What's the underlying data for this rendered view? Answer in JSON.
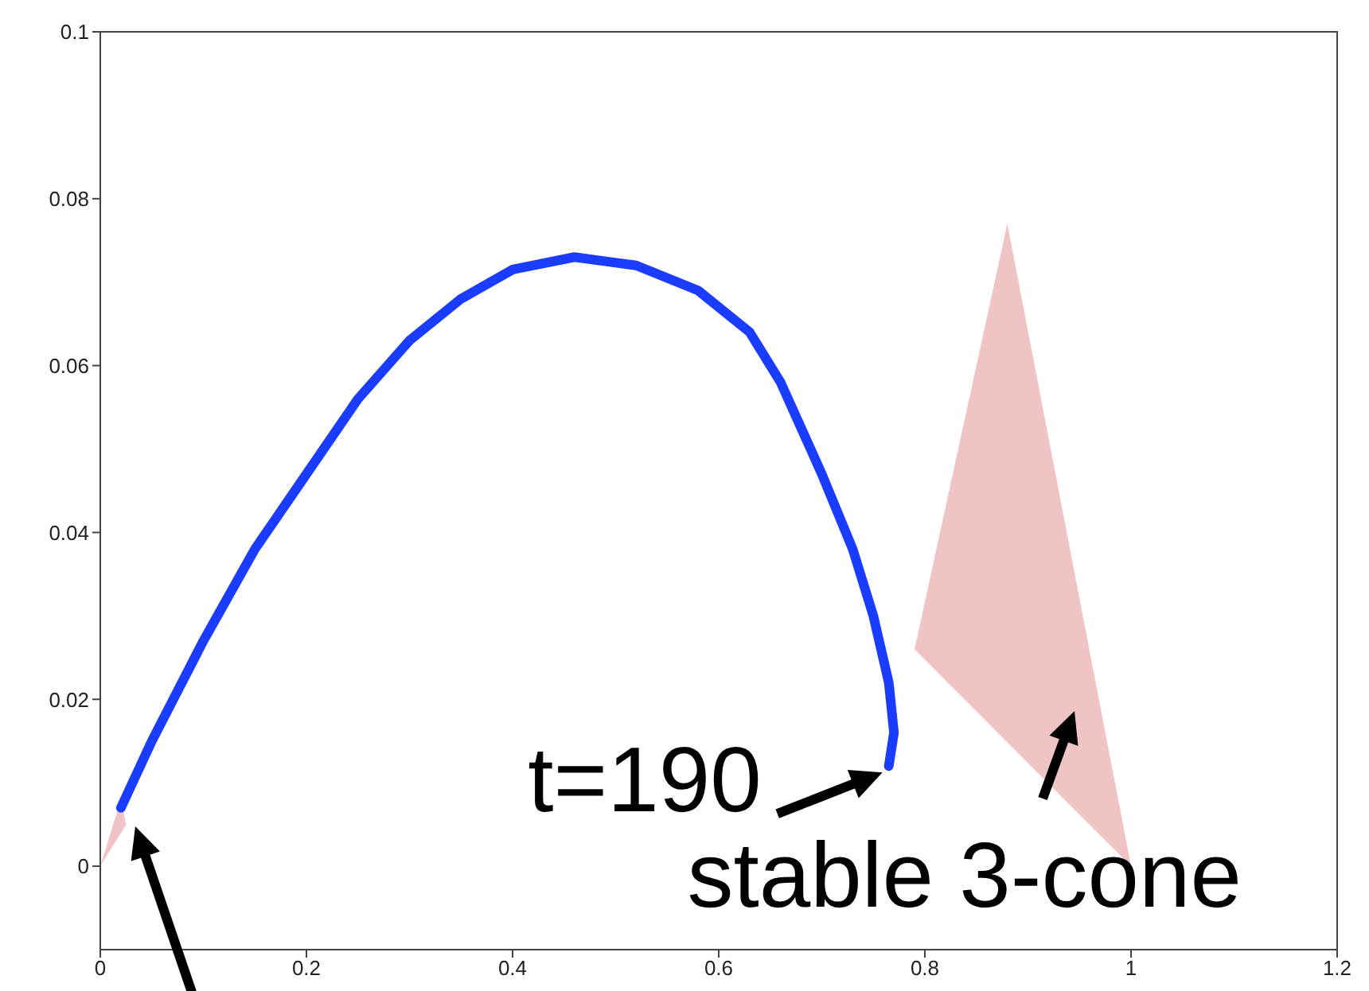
{
  "chart_data": {
    "type": "line",
    "series": [
      {
        "color": "#1a3cff",
        "x": [
          0.02,
          0.05,
          0.1,
          0.15,
          0.2,
          0.25,
          0.3,
          0.35,
          0.4,
          0.46,
          0.52,
          0.58,
          0.63,
          0.66,
          0.7,
          0.73,
          0.75,
          0.765,
          0.77,
          0.765
        ],
        "values": [
          0.007,
          0.015,
          0.027,
          0.038,
          0.047,
          0.056,
          0.063,
          0.068,
          0.0715,
          0.073,
          0.072,
          0.069,
          0.064,
          0.058,
          0.047,
          0.038,
          0.03,
          0.022,
          0.016,
          0.012
        ]
      },
      {
        "type": "area",
        "color": "#f0c4c4",
        "x": [
          0.79,
          0.88,
          1.0
        ],
        "values": [
          0.026,
          0.077,
          0.0
        ]
      },
      {
        "type": "area",
        "color": "#f0c4c4",
        "x": [
          0,
          0.02,
          0.025
        ],
        "values": [
          0,
          0.008,
          0.005
        ]
      }
    ],
    "xlim": [
      0,
      1.2
    ],
    "xticks": [
      0,
      0.2,
      0.4,
      0.6,
      0.8,
      1,
      1.2
    ],
    "ylim": [
      -0.01,
      0.1
    ],
    "yticks": [
      0,
      0.02,
      0.04,
      0.06,
      0.08,
      0.1
    ],
    "grid": false,
    "legend": false,
    "marker": "none",
    "line_style": "solid",
    "annotations": [
      {
        "text": "t=190",
        "x": 0.765,
        "y": 0.012
      },
      "stable 3-cone"
    ]
  }
}
